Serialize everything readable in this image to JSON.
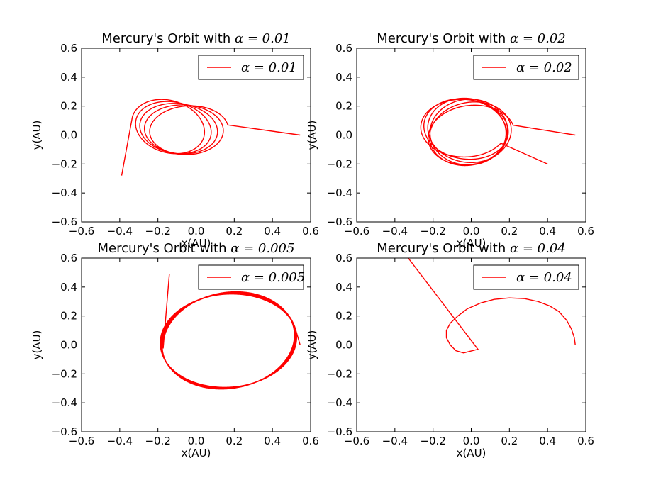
{
  "figure": {
    "background": "#ffffff",
    "line_color": "#ff0000"
  },
  "chart_data": [
    {
      "type": "line",
      "title_prefix": "Mercury's Orbit with ",
      "title_math": "α = 0.01",
      "title": "Mercury's Orbit with α = 0.01",
      "xlabel": "x(AU)",
      "ylabel": "y(AU)",
      "xlim": [
        -0.6,
        0.6
      ],
      "ylim": [
        -0.6,
        0.6
      ],
      "xticks": [
        "−0.6",
        "−0.4",
        "−0.2",
        "0.0",
        "0.2",
        "0.4",
        "0.6"
      ],
      "yticks": [
        "−0.6",
        "−0.4",
        "−0.2",
        "0.0",
        "0.2",
        "0.4",
        "0.6"
      ],
      "grid": false,
      "legend_position": "upper right",
      "series": [
        {
          "name": "α = 0.01",
          "color": "#ff0000",
          "orbit": {
            "a": 0.2,
            "b": 0.17,
            "cx": -0.03,
            "cy": 0.03,
            "tilt": 0.2,
            "precession": -1.1,
            "drift": [
              -0.5,
              0.03
            ],
            "turns": 4.6,
            "dir": 1,
            "start": [
              0.545,
              0.0
            ],
            "end": [
              -0.39,
              -0.28
            ]
          }
        }
      ]
    },
    {
      "type": "line",
      "title_prefix": "Mercury's Orbit with ",
      "title_math": "α = 0.02",
      "title": "Mercury's Orbit with α = 0.02",
      "xlabel": "x(AU)",
      "ylabel": "y(AU)",
      "xlim": [
        -0.6,
        0.6
      ],
      "ylim": [
        -0.6,
        0.6
      ],
      "xticks": [
        "−0.6",
        "−0.4",
        "−0.2",
        "0.0",
        "0.2",
        "0.4",
        "0.6"
      ],
      "yticks": [
        "−0.6",
        "−0.4",
        "−0.2",
        "0.0",
        "0.2",
        "0.4",
        "0.6"
      ],
      "grid": false,
      "legend_position": "upper right",
      "series": [
        {
          "name": "α = 0.02",
          "color": "#ff0000",
          "orbit": {
            "a": 0.23,
            "b": 0.2,
            "cx": 0.0,
            "cy": 0.0,
            "tilt": 0.3,
            "precession": 2.9,
            "drift": [
              -0.15,
              0.05
            ],
            "turns": 5.4,
            "dir": 1,
            "start": [
              0.545,
              0.0
            ],
            "end": [
              0.4,
              -0.2
            ]
          }
        }
      ]
    },
    {
      "type": "line",
      "title_prefix": "Mercury's Orbit with ",
      "title_math": "α = 0.005",
      "title": "Mercury's Orbit with α = 0.005",
      "xlabel": "x(AU)",
      "ylabel": "y(AU)",
      "xlim": [
        -0.6,
        0.6
      ],
      "ylim": [
        -0.6,
        0.6
      ],
      "xticks": [
        "−0.6",
        "−0.4",
        "−0.2",
        "0.0",
        "0.2",
        "0.4",
        "0.6"
      ],
      "yticks": [
        "−0.6",
        "−0.4",
        "−0.2",
        "0.0",
        "0.2",
        "0.4",
        "0.6"
      ],
      "grid": false,
      "legend_position": "upper right",
      "series": [
        {
          "name": "α = 0.005",
          "color": "#ff0000",
          "orbit": {
            "a": 0.36,
            "b": 0.32,
            "cx": 0.17,
            "cy": 0.03,
            "tilt": 0.18,
            "precession": 0.55,
            "drift": [
              0.0,
              0.0
            ],
            "turns": 4.4,
            "dir": 1,
            "start": [
              0.545,
              0.0
            ],
            "end": [
              -0.14,
              0.49
            ]
          }
        }
      ]
    },
    {
      "type": "line",
      "title_prefix": "Mercury's Orbit with ",
      "title_math": "α = 0.04",
      "title": "Mercury's Orbit with α = 0.04",
      "xlabel": "x(AU)",
      "ylabel": "y(AU)",
      "xlim": [
        -0.6,
        0.6
      ],
      "ylim": [
        -0.6,
        0.6
      ],
      "xticks": [
        "−0.6",
        "−0.4",
        "−0.2",
        "0.0",
        "0.2",
        "0.4",
        "0.6"
      ],
      "yticks": [
        "−0.6",
        "−0.4",
        "−0.2",
        "0.0",
        "0.2",
        "0.4",
        "0.6"
      ],
      "grid": false,
      "legend_position": "upper right",
      "series": [
        {
          "name": "α = 0.04",
          "color": "#ff0000",
          "points": [
            [
              0.545,
              0.0
            ],
            [
              0.54,
              0.05
            ],
            [
              0.525,
              0.11
            ],
            [
              0.5,
              0.17
            ],
            [
              0.46,
              0.23
            ],
            [
              0.41,
              0.27
            ],
            [
              0.35,
              0.3
            ],
            [
              0.28,
              0.32
            ],
            [
              0.2,
              0.325
            ],
            [
              0.12,
              0.315
            ],
            [
              0.05,
              0.29
            ],
            [
              -0.02,
              0.25
            ],
            [
              -0.07,
              0.2
            ],
            [
              -0.11,
              0.15
            ],
            [
              -0.13,
              0.1
            ],
            [
              -0.13,
              0.05
            ],
            [
              -0.11,
              0.0
            ],
            [
              -0.08,
              -0.04
            ],
            [
              -0.04,
              -0.055
            ],
            [
              0.035,
              -0.03
            ],
            [
              -0.33,
              0.6
            ]
          ]
        }
      ]
    }
  ]
}
